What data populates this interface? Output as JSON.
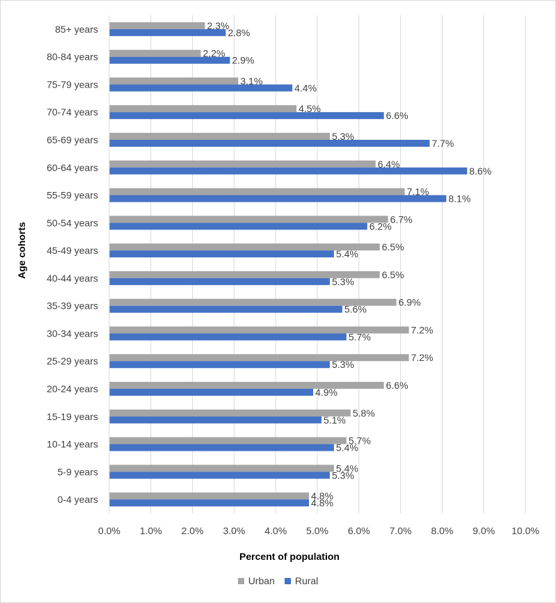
{
  "chart_data": {
    "type": "bar",
    "orientation": "horizontal",
    "categories": [
      "0-4 years",
      "5-9 years",
      "10-14 years",
      "15-19 years",
      "20-24 years",
      "25-29 years",
      "30-34 years",
      "35-39 years",
      "40-44 years",
      "45-49 years",
      "50-54 years",
      "55-59 years",
      "60-64 years",
      "65-69 years",
      "70-74 years",
      "75-79 years",
      "80-84 years",
      "85+ years"
    ],
    "series": [
      {
        "name": "Urban",
        "color": "#a5a5a5",
        "values": [
          4.8,
          5.4,
          5.7,
          5.8,
          6.6,
          7.2,
          7.2,
          6.9,
          6.5,
          6.5,
          6.7,
          7.1,
          6.4,
          5.3,
          4.5,
          3.1,
          2.2,
          2.3
        ],
        "labels": [
          "4.8%",
          "5.4%",
          "5.7%",
          "5.8%",
          "6.6%",
          "7.2%",
          "7.2%",
          "6.9%",
          "6.5%",
          "6.5%",
          "6.7%",
          "7.1%",
          "6.4%",
          "5.3%",
          "4.5%",
          "3.1%",
          "2.2%",
          "2.3%"
        ]
      },
      {
        "name": "Rural",
        "color": "#4472c4",
        "values": [
          4.8,
          5.3,
          5.4,
          5.1,
          4.9,
          5.3,
          5.7,
          5.6,
          5.3,
          5.4,
          6.2,
          8.1,
          8.6,
          7.7,
          6.6,
          4.4,
          2.9,
          2.8
        ],
        "labels": [
          "4.8%",
          "5.3%",
          "5.4%",
          "5.1%",
          "4.9%",
          "5.3%",
          "5.7%",
          "5.6%",
          "5.3%",
          "5.4%",
          "6.2%",
          "8.1%",
          "8.6%",
          "7.7%",
          "6.6%",
          "4.4%",
          "2.9%",
          "2.8%"
        ]
      }
    ],
    "xlim": [
      0,
      10
    ],
    "xticks": [
      "0.0%",
      "1.0%",
      "2.0%",
      "3.0%",
      "4.0%",
      "5.0%",
      "6.0%",
      "7.0%",
      "8.0%",
      "9.0%",
      "10.0%"
    ],
    "xlabel": "Percent of population",
    "ylabel": "Age cohorts",
    "grid": "vertical",
    "legend": "bottom"
  }
}
